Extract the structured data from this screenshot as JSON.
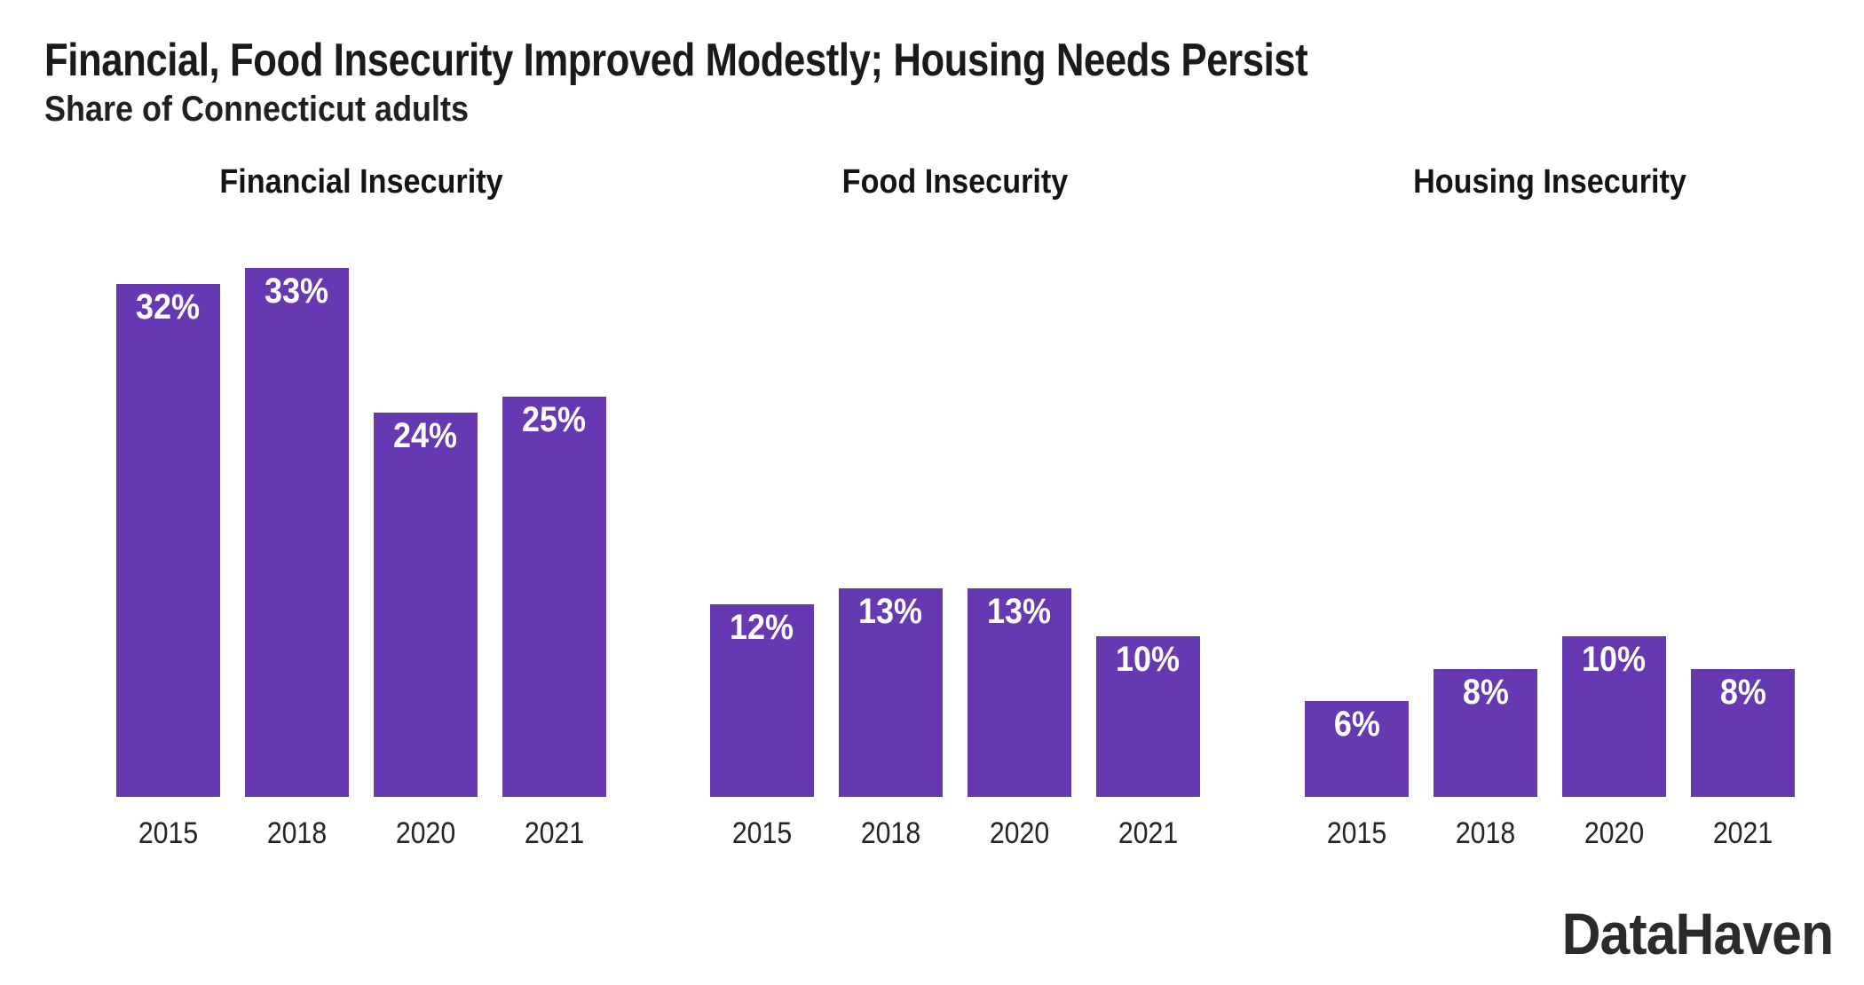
{
  "header": {
    "title": "Financial, Food Insecurity Improved Modestly; Housing Needs Persist",
    "subtitle": "Share of Connecticut adults"
  },
  "branding": {
    "logo_text": "DataHaven"
  },
  "colors": {
    "bar_fill": "#6639b2",
    "bar_value_text": "#ffffff",
    "title_text": "#1a1a1a",
    "axis_text": "#242424",
    "background": "#ffffff"
  },
  "chart_data": {
    "type": "bar",
    "title": "Financial, Food Insecurity Improved Modestly; Housing Needs Persist",
    "subtitle": "Share of Connecticut adults",
    "unit": "%",
    "categories": [
      "2015",
      "2018",
      "2020",
      "2021"
    ],
    "panels": [
      {
        "label": "Financial Insecurity",
        "values": [
          32,
          33,
          24,
          25
        ]
      },
      {
        "label": "Food Insecurity",
        "values": [
          12,
          13,
          13,
          10
        ]
      },
      {
        "label": "Housing Insecurity",
        "values": [
          6,
          8,
          10,
          8
        ]
      }
    ],
    "value_labels": "inside-top, white, bold",
    "xlabel": "",
    "ylabel": "",
    "ylim": [
      0,
      38
    ],
    "grid": false,
    "legend": "none",
    "layout": "three side-by-side small multiples sharing one value scale, no y-axis shown"
  }
}
